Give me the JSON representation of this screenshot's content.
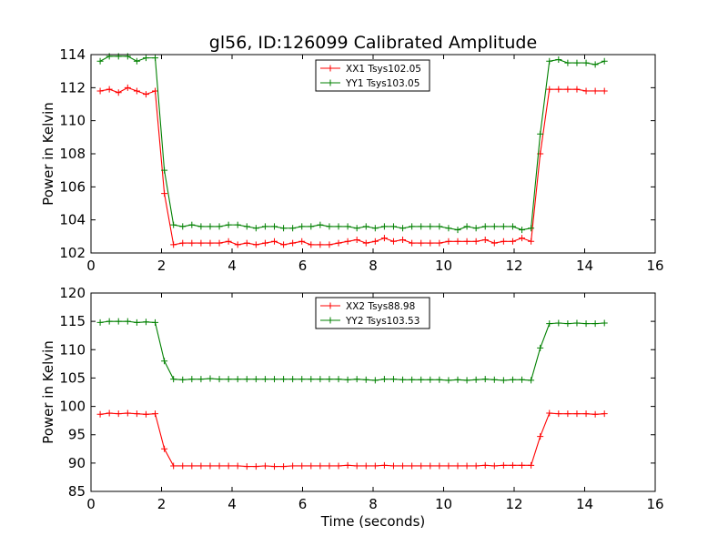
{
  "figure": {
    "title": "gl56, ID:126099 Calibrated Amplitude"
  },
  "chart_data": [
    {
      "type": "line",
      "title": "gl56, ID:126099 Calibrated Amplitude",
      "xlabel": "",
      "ylabel": "Power in Kelvin",
      "xlim": [
        0,
        16
      ],
      "ylim": [
        102,
        114
      ],
      "x_ticks": [
        0,
        2,
        4,
        6,
        8,
        10,
        12,
        14,
        16
      ],
      "y_ticks": [
        102,
        104,
        106,
        108,
        110,
        112,
        114
      ],
      "legend_position": "top-center",
      "x": [
        0.26,
        0.52,
        0.78,
        1.04,
        1.3,
        1.56,
        1.82,
        2.08,
        2.34,
        2.6,
        2.86,
        3.12,
        3.38,
        3.64,
        3.9,
        4.16,
        4.42,
        4.68,
        4.94,
        5.2,
        5.46,
        5.72,
        5.98,
        6.24,
        6.5,
        6.76,
        7.02,
        7.28,
        7.54,
        7.8,
        8.06,
        8.32,
        8.58,
        8.84,
        9.1,
        9.36,
        9.62,
        9.88,
        10.14,
        10.4,
        10.66,
        10.92,
        11.18,
        11.44,
        11.7,
        11.96,
        12.22,
        12.48,
        12.74,
        13.0,
        13.26,
        13.52,
        13.78,
        14.04,
        14.3,
        14.56
      ],
      "series": [
        {
          "name": "XX1 Tsys102.05",
          "color": "#ff0000",
          "values": [
            111.8,
            111.9,
            111.7,
            112.0,
            111.8,
            111.6,
            111.8,
            105.6,
            102.5,
            102.6,
            102.6,
            102.6,
            102.6,
            102.6,
            102.7,
            102.5,
            102.6,
            102.5,
            102.6,
            102.7,
            102.5,
            102.6,
            102.7,
            102.5,
            102.5,
            102.5,
            102.6,
            102.7,
            102.8,
            102.6,
            102.7,
            102.9,
            102.7,
            102.8,
            102.6,
            102.6,
            102.6,
            102.6,
            102.7,
            102.7,
            102.7,
            102.7,
            102.8,
            102.6,
            102.7,
            102.7,
            102.9,
            102.7,
            108.0,
            111.9,
            111.9,
            111.9,
            111.9,
            111.8,
            111.8,
            111.8
          ]
        },
        {
          "name": "YY1 Tsys103.05",
          "color": "#008000",
          "values": [
            113.6,
            113.9,
            113.9,
            113.9,
            113.6,
            113.8,
            113.8,
            107.0,
            103.7,
            103.6,
            103.7,
            103.6,
            103.6,
            103.6,
            103.7,
            103.7,
            103.6,
            103.5,
            103.6,
            103.6,
            103.5,
            103.5,
            103.6,
            103.6,
            103.7,
            103.6,
            103.6,
            103.6,
            103.5,
            103.6,
            103.5,
            103.6,
            103.6,
            103.5,
            103.6,
            103.6,
            103.6,
            103.6,
            103.5,
            103.4,
            103.6,
            103.5,
            103.6,
            103.6,
            103.6,
            103.6,
            103.4,
            103.5,
            109.2,
            113.6,
            113.7,
            113.5,
            113.5,
            113.5,
            113.4,
            113.6
          ]
        }
      ]
    },
    {
      "type": "line",
      "title": "",
      "xlabel": "Time (seconds)",
      "ylabel": "Power in Kelvin",
      "xlim": [
        0,
        16
      ],
      "ylim": [
        85,
        120
      ],
      "x_ticks": [
        0,
        2,
        4,
        6,
        8,
        10,
        12,
        14,
        16
      ],
      "y_ticks": [
        85,
        90,
        95,
        100,
        105,
        110,
        115,
        120
      ],
      "legend_position": "top-center",
      "x": [
        0.26,
        0.52,
        0.78,
        1.04,
        1.3,
        1.56,
        1.82,
        2.08,
        2.34,
        2.6,
        2.86,
        3.12,
        3.38,
        3.64,
        3.9,
        4.16,
        4.42,
        4.68,
        4.94,
        5.2,
        5.46,
        5.72,
        5.98,
        6.24,
        6.5,
        6.76,
        7.02,
        7.28,
        7.54,
        7.8,
        8.06,
        8.32,
        8.58,
        8.84,
        9.1,
        9.36,
        9.62,
        9.88,
        10.14,
        10.4,
        10.66,
        10.92,
        11.18,
        11.44,
        11.7,
        11.96,
        12.22,
        12.48,
        12.74,
        13.0,
        13.26,
        13.52,
        13.78,
        14.04,
        14.3,
        14.56
      ],
      "series": [
        {
          "name": "XX2 Tsys88.98",
          "color": "#ff0000",
          "values": [
            98.6,
            98.8,
            98.7,
            98.8,
            98.7,
            98.6,
            98.7,
            92.5,
            89.5,
            89.5,
            89.5,
            89.5,
            89.5,
            89.5,
            89.5,
            89.5,
            89.4,
            89.4,
            89.5,
            89.4,
            89.4,
            89.5,
            89.5,
            89.5,
            89.5,
            89.5,
            89.5,
            89.6,
            89.5,
            89.5,
            89.5,
            89.6,
            89.5,
            89.5,
            89.5,
            89.5,
            89.5,
            89.5,
            89.5,
            89.5,
            89.5,
            89.5,
            89.6,
            89.5,
            89.6,
            89.6,
            89.6,
            89.6,
            94.7,
            98.8,
            98.7,
            98.7,
            98.7,
            98.7,
            98.6,
            98.7
          ]
        },
        {
          "name": "YY2 Tsys103.53",
          "color": "#008000",
          "values": [
            114.8,
            115.0,
            115.0,
            115.0,
            114.8,
            114.9,
            114.8,
            108.0,
            104.8,
            104.7,
            104.8,
            104.8,
            104.9,
            104.8,
            104.8,
            104.8,
            104.8,
            104.8,
            104.8,
            104.8,
            104.8,
            104.8,
            104.8,
            104.8,
            104.8,
            104.8,
            104.8,
            104.7,
            104.8,
            104.7,
            104.6,
            104.8,
            104.8,
            104.7,
            104.7,
            104.7,
            104.7,
            104.7,
            104.6,
            104.7,
            104.6,
            104.7,
            104.8,
            104.7,
            104.6,
            104.7,
            104.7,
            104.6,
            110.3,
            114.6,
            114.7,
            114.6,
            114.7,
            114.6,
            114.6,
            114.7
          ]
        }
      ]
    }
  ]
}
